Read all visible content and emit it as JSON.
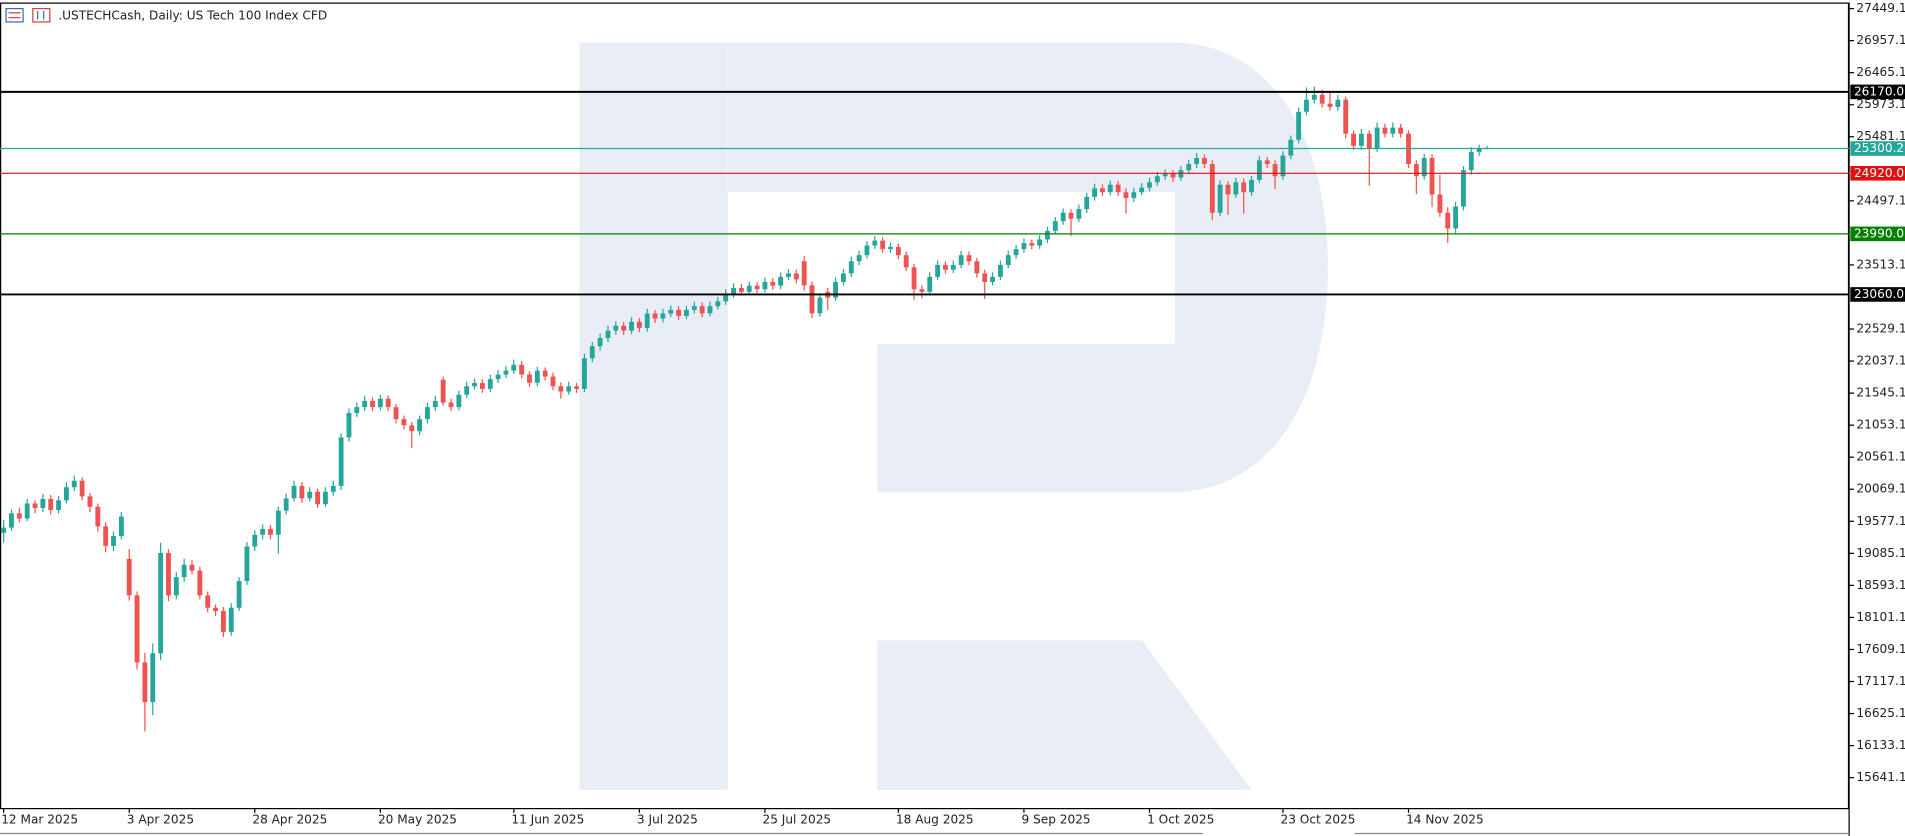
{
  "chart_data": {
    "type": "candlestick",
    "title": ".USTECHCash, Daily:  US Tech 100 Index CFD",
    "up_color": "#26a69a",
    "down_color": "#ef5350",
    "ylim": [
      15175.3,
      27542.4
    ],
    "yticks": [
      27449.1,
      26957.1,
      26465.1,
      25973.1,
      25481.1,
      24497.1,
      23513.1,
      22529.1,
      22037.1,
      21545.1,
      21053.1,
      20561.1,
      20069.1,
      19577.1,
      19085.1,
      18593.1,
      18101.1,
      17609.1,
      17117.1,
      16625.1,
      16133.1,
      15641.1
    ],
    "levels": [
      {
        "value": 26170,
        "label": "26170.0",
        "color": "#000000"
      },
      {
        "value": 25300.2,
        "label": "25300.2",
        "color": "#26a69a"
      },
      {
        "value": 24920,
        "label": "24920.0",
        "color": "#e01010"
      },
      {
        "value": 23990,
        "label": "23990.0",
        "color": "#008000"
      },
      {
        "value": 23060,
        "label": "23060.0",
        "color": "#000000"
      }
    ],
    "categories": [
      "12 Mar 2025",
      null,
      null,
      null,
      null,
      null,
      null,
      null,
      null,
      null,
      null,
      null,
      null,
      null,
      null,
      null,
      "3 Apr 2025",
      null,
      null,
      null,
      null,
      null,
      null,
      null,
      null,
      null,
      null,
      null,
      null,
      null,
      null,
      null,
      "28 Apr 2025",
      null,
      null,
      null,
      null,
      null,
      null,
      null,
      null,
      null,
      null,
      null,
      null,
      null,
      null,
      null,
      "20 May 2025",
      null,
      null,
      null,
      null,
      null,
      null,
      null,
      null,
      null,
      null,
      null,
      null,
      null,
      null,
      null,
      null,
      "11 Jun 2025",
      null,
      null,
      null,
      null,
      null,
      null,
      null,
      null,
      null,
      null,
      null,
      null,
      null,
      null,
      null,
      "3 Jul 2025",
      null,
      null,
      null,
      null,
      null,
      null,
      null,
      null,
      null,
      null,
      null,
      null,
      null,
      null,
      null,
      "25 Jul 2025",
      null,
      null,
      null,
      null,
      null,
      null,
      null,
      null,
      null,
      null,
      null,
      null,
      null,
      null,
      null,
      null,
      "18 Aug 2025",
      null,
      null,
      null,
      null,
      null,
      null,
      null,
      null,
      null,
      null,
      null,
      null,
      null,
      null,
      null,
      "9 Sep 2025",
      null,
      null,
      null,
      null,
      null,
      null,
      null,
      null,
      null,
      null,
      null,
      null,
      null,
      null,
      null,
      "1 Oct 2025",
      null,
      null,
      null,
      null,
      null,
      null,
      null,
      null,
      null,
      null,
      null,
      null,
      null,
      null,
      null,
      null,
      "23 Oct 2025",
      null,
      null,
      null,
      null,
      null,
      null,
      null,
      null,
      null,
      null,
      null,
      null,
      null,
      null,
      null,
      "14 Nov 2025",
      null,
      null,
      null,
      null,
      null,
      null,
      null,
      null,
      null,
      null
    ],
    "candles": [
      [
        19400,
        19600,
        19250,
        19480
      ],
      [
        19480,
        19760,
        19430,
        19700
      ],
      [
        19700,
        19780,
        19560,
        19620
      ],
      [
        19620,
        19920,
        19580,
        19850
      ],
      [
        19850,
        19900,
        19700,
        19780
      ],
      [
        19780,
        20000,
        19720,
        19920
      ],
      [
        19920,
        19980,
        19680,
        19750
      ],
      [
        19750,
        19970,
        19700,
        19900
      ],
      [
        19900,
        20180,
        19850,
        20100
      ],
      [
        20100,
        20280,
        20040,
        20200
      ],
      [
        20200,
        20250,
        19900,
        19960
      ],
      [
        19960,
        20010,
        19720,
        19800
      ],
      [
        19800,
        19850,
        19420,
        19500
      ],
      [
        19500,
        19560,
        19100,
        19200
      ],
      [
        19200,
        19420,
        19120,
        19350
      ],
      [
        19350,
        19720,
        19300,
        19650
      ],
      [
        19000,
        19150,
        18360,
        18440
      ],
      [
        18440,
        18500,
        17300,
        17410
      ],
      [
        17410,
        17560,
        16350,
        16800
      ],
      [
        16800,
        17700,
        16600,
        17550
      ],
      [
        17550,
        19250,
        17450,
        19090
      ],
      [
        19090,
        19150,
        18350,
        18440
      ],
      [
        18440,
        18800,
        18380,
        18720
      ],
      [
        18720,
        19000,
        18650,
        18910
      ],
      [
        18910,
        18980,
        18760,
        18820
      ],
      [
        18820,
        18880,
        18380,
        18440
      ],
      [
        18440,
        18500,
        18180,
        18250
      ],
      [
        18250,
        18300,
        18120,
        18200
      ],
      [
        18200,
        18260,
        17800,
        17880
      ],
      [
        17880,
        18320,
        17820,
        18250
      ],
      [
        18250,
        18720,
        18200,
        18660
      ],
      [
        18660,
        19260,
        18600,
        19190
      ],
      [
        19190,
        19440,
        19120,
        19370
      ],
      [
        19370,
        19530,
        19300,
        19460
      ],
      [
        19460,
        19520,
        19300,
        19370
      ],
      [
        19370,
        19800,
        19080,
        19740
      ],
      [
        19740,
        20000,
        19680,
        19930
      ],
      [
        19930,
        20200,
        19880,
        20120
      ],
      [
        20120,
        20180,
        19860,
        19930
      ],
      [
        19930,
        20100,
        19880,
        20030
      ],
      [
        20030,
        20080,
        19780,
        19840
      ],
      [
        19840,
        20100,
        19800,
        20030
      ],
      [
        20030,
        20200,
        19970,
        20120
      ],
      [
        20120,
        20930,
        20060,
        20865
      ],
      [
        20865,
        21310,
        20800,
        21240
      ],
      [
        21240,
        21400,
        21180,
        21330
      ],
      [
        21330,
        21500,
        21270,
        21425
      ],
      [
        21425,
        21480,
        21270,
        21330
      ],
      [
        21330,
        21520,
        21280,
        21460
      ],
      [
        21460,
        21510,
        21270,
        21330
      ],
      [
        21330,
        21380,
        21080,
        21145
      ],
      [
        21145,
        21200,
        20990,
        21050
      ],
      [
        21050,
        21100,
        20700,
        20960
      ],
      [
        20960,
        21200,
        20900,
        21145
      ],
      [
        21145,
        21400,
        21080,
        21330
      ],
      [
        21330,
        21500,
        21270,
        21425
      ],
      [
        21750,
        21800,
        21350,
        21400
      ],
      [
        21400,
        21460,
        21270,
        21330
      ],
      [
        21330,
        21580,
        21280,
        21520
      ],
      [
        21520,
        21720,
        21470,
        21650
      ],
      [
        21650,
        21770,
        21600,
        21700
      ],
      [
        21700,
        21760,
        21550,
        21610
      ],
      [
        21610,
        21830,
        21560,
        21760
      ],
      [
        21760,
        21900,
        21700,
        21830
      ],
      [
        21830,
        21960,
        21780,
        21890
      ],
      [
        21890,
        22060,
        21840,
        21980
      ],
      [
        21980,
        22040,
        21770,
        21830
      ],
      [
        21830,
        21880,
        21640,
        21705
      ],
      [
        21705,
        21950,
        21650,
        21890
      ],
      [
        21890,
        21940,
        21740,
        21800
      ],
      [
        21800,
        21860,
        21590,
        21650
      ],
      [
        21650,
        21710,
        21460,
        21570
      ],
      [
        21570,
        21720,
        21520,
        21650
      ],
      [
        21650,
        21700,
        21550,
        21610
      ],
      [
        21610,
        22150,
        21560,
        22080
      ],
      [
        22080,
        22330,
        22020,
        22265
      ],
      [
        22265,
        22460,
        22200,
        22390
      ],
      [
        22390,
        22580,
        22330,
        22505
      ],
      [
        22505,
        22650,
        22440,
        22580
      ],
      [
        22580,
        22640,
        22440,
        22505
      ],
      [
        22505,
        22710,
        22450,
        22640
      ],
      [
        22640,
        22700,
        22480,
        22545
      ],
      [
        22545,
        22840,
        22490,
        22767
      ],
      [
        22767,
        22820,
        22620,
        22690
      ],
      [
        22690,
        22840,
        22630,
        22767
      ],
      [
        22767,
        22890,
        22710,
        22823
      ],
      [
        22823,
        22880,
        22670,
        22730
      ],
      [
        22730,
        22890,
        22680,
        22823
      ],
      [
        22823,
        22950,
        22770,
        22880
      ],
      [
        22880,
        22940,
        22710,
        22770
      ],
      [
        22770,
        22950,
        22720,
        22880
      ],
      [
        22880,
        23020,
        22830,
        22954
      ],
      [
        22954,
        23140,
        22900,
        23066
      ],
      [
        23066,
        23230,
        23010,
        23160
      ],
      [
        23160,
        23220,
        23040,
        23100
      ],
      [
        23100,
        23260,
        23050,
        23195
      ],
      [
        23195,
        23250,
        23080,
        23140
      ],
      [
        23140,
        23320,
        23090,
        23252
      ],
      [
        23252,
        23310,
        23130,
        23195
      ],
      [
        23195,
        23400,
        23140,
        23330
      ],
      [
        23330,
        23450,
        23280,
        23383
      ],
      [
        23383,
        23440,
        23230,
        23290
      ],
      [
        23570,
        23650,
        23120,
        23200
      ],
      [
        23200,
        23260,
        22700,
        22770
      ],
      [
        22770,
        23080,
        22720,
        23010
      ],
      [
        23100,
        23160,
        22820,
        23010
      ],
      [
        23010,
        23320,
        22960,
        23252
      ],
      [
        23252,
        23450,
        23200,
        23383
      ],
      [
        23383,
        23640,
        23330,
        23570
      ],
      [
        23570,
        23730,
        23510,
        23663
      ],
      [
        23663,
        23880,
        23610,
        23812
      ],
      [
        23812,
        23960,
        23760,
        23886
      ],
      [
        23886,
        23940,
        23700,
        23756
      ],
      [
        23756,
        23860,
        23700,
        23790
      ],
      [
        23790,
        23840,
        23600,
        23663
      ],
      [
        23663,
        23720,
        23420,
        23476
      ],
      [
        23476,
        23530,
        22980,
        23140
      ],
      [
        23140,
        23200,
        23000,
        23100
      ],
      [
        23100,
        23400,
        23040,
        23330
      ],
      [
        23330,
        23580,
        23280,
        23513
      ],
      [
        23513,
        23570,
        23380,
        23440
      ],
      [
        23440,
        23580,
        23390,
        23513
      ],
      [
        23513,
        23730,
        23460,
        23663
      ],
      [
        23663,
        23720,
        23510,
        23570
      ],
      [
        23570,
        23620,
        23320,
        23383
      ],
      [
        23383,
        23440,
        22990,
        23252
      ],
      [
        23252,
        23400,
        23200,
        23330
      ],
      [
        23330,
        23580,
        23280,
        23513
      ],
      [
        23513,
        23730,
        23460,
        23663
      ],
      [
        23663,
        23820,
        23610,
        23756
      ],
      [
        23756,
        23920,
        23700,
        23849
      ],
      [
        23849,
        23900,
        23750,
        23810
      ],
      [
        23810,
        23970,
        23760,
        23905
      ],
      [
        23905,
        24100,
        23850,
        24036
      ],
      [
        24036,
        24250,
        23980,
        24185
      ],
      [
        24185,
        24380,
        24130,
        24315
      ],
      [
        24315,
        24370,
        23960,
        24222
      ],
      [
        24222,
        24440,
        24170,
        24370
      ],
      [
        24370,
        24620,
        24310,
        24558
      ],
      [
        24558,
        24760,
        24500,
        24689
      ],
      [
        24689,
        24750,
        24570,
        24630
      ],
      [
        24630,
        24810,
        24580,
        24745
      ],
      [
        24745,
        24800,
        24570,
        24630
      ],
      [
        24630,
        24690,
        24300,
        24540
      ],
      [
        24540,
        24700,
        24480,
        24630
      ],
      [
        24630,
        24770,
        24580,
        24700
      ],
      [
        24700,
        24850,
        24640,
        24782
      ],
      [
        24782,
        24940,
        24730,
        24875
      ],
      [
        24875,
        24980,
        24820,
        24912
      ],
      [
        24912,
        24970,
        24790,
        24855
      ],
      [
        24855,
        25030,
        24800,
        24968
      ],
      [
        24968,
        25130,
        24910,
        25062
      ],
      [
        25062,
        25230,
        25000,
        25155
      ],
      [
        25155,
        25210,
        25000,
        25062
      ],
      [
        25062,
        25120,
        24200,
        24315
      ],
      [
        24315,
        24810,
        24260,
        24745
      ],
      [
        24745,
        24800,
        24280,
        24595
      ],
      [
        24595,
        24850,
        24540,
        24782
      ],
      [
        24782,
        24840,
        24300,
        24630
      ],
      [
        24630,
        24880,
        24570,
        24819
      ],
      [
        24819,
        25180,
        24770,
        25118
      ],
      [
        25118,
        25170,
        25000,
        25062
      ],
      [
        25062,
        25120,
        24680,
        24875
      ],
      [
        24875,
        25260,
        24820,
        25192
      ],
      [
        25192,
        25500,
        25140,
        25435
      ],
      [
        25435,
        25930,
        25380,
        25864
      ],
      [
        25864,
        26240,
        25810,
        26050
      ],
      [
        26050,
        26250,
        25990,
        26125
      ],
      [
        26125,
        26200,
        25930,
        25990
      ],
      [
        25990,
        26180,
        25880,
        25938
      ],
      [
        25938,
        26120,
        25880,
        26050
      ],
      [
        26050,
        26100,
        25460,
        25528
      ],
      [
        25528,
        25580,
        25280,
        25342
      ],
      [
        25342,
        25600,
        25280,
        25528
      ],
      [
        25528,
        25580,
        24730,
        25305
      ],
      [
        25305,
        25700,
        25250,
        25621
      ],
      [
        25621,
        25680,
        25470,
        25528
      ],
      [
        25528,
        25700,
        25470,
        25621
      ],
      [
        25621,
        25680,
        25470,
        25528
      ],
      [
        25528,
        25580,
        25000,
        25062
      ],
      [
        25062,
        25120,
        24600,
        24875
      ],
      [
        24875,
        25220,
        24820,
        25155
      ],
      [
        25155,
        25210,
        24400,
        24595
      ],
      [
        24595,
        24900,
        24250,
        24315
      ],
      [
        24315,
        24400,
        23850,
        24073
      ],
      [
        24073,
        24480,
        24000,
        24410
      ],
      [
        24410,
        25030,
        24350,
        24968
      ],
      [
        24968,
        25320,
        24900,
        25248
      ],
      [
        25248,
        25360,
        25190,
        25300
      ],
      [
        25300,
        25340,
        25290,
        25310
      ]
    ]
  }
}
